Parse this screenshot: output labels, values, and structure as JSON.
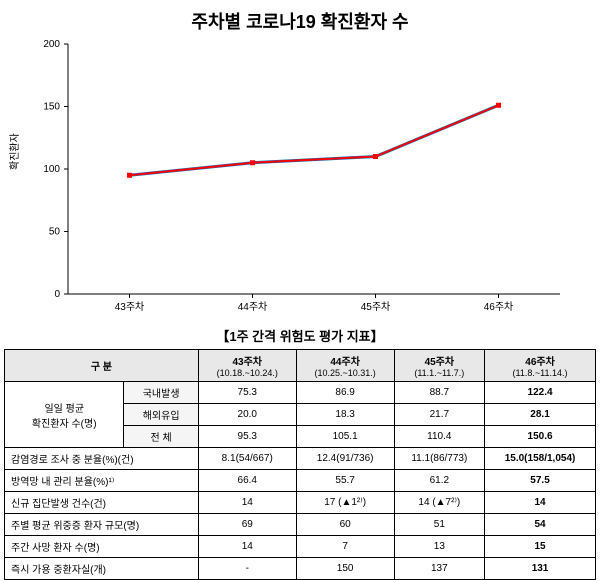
{
  "chart": {
    "title": "주차별 코로나19 확진환자 수",
    "y_label": "확진환자",
    "type": "line",
    "categories": [
      "43주차",
      "44주차",
      "45주차",
      "46주차"
    ],
    "values": [
      95,
      105,
      110,
      151
    ],
    "ylim": [
      0,
      200
    ],
    "ytick_step": 50,
    "line_color_outer": "#0070c0",
    "line_color_inner": "#ff0000",
    "marker_color": "#ff0000",
    "marker_size": 5,
    "line_width_outer": 3,
    "line_width_inner": 2,
    "background_color": "#ffffff",
    "axis_color": "#000000",
    "tick_fontsize": 10,
    "title_fontsize": 18
  },
  "table": {
    "title": "【1주 간격 위험도 평가 지표】",
    "header_main": "구 분",
    "columns": [
      {
        "main": "43주차",
        "sub": "(10.18.~10.24.)"
      },
      {
        "main": "44주차",
        "sub": "(10.25.~10.31.)"
      },
      {
        "main": "45주차",
        "sub": "(11.1.~11.7.)"
      },
      {
        "main": "46주차",
        "sub": "(11.8.~11.14.)"
      }
    ],
    "group_row": {
      "label": "일일 평균\n확진환자 수(명)",
      "subrows": [
        {
          "label": "국내발생",
          "cells": [
            "75.3",
            "86.9",
            "88.7",
            "122.4"
          ]
        },
        {
          "label": "해외유입",
          "cells": [
            "20.0",
            "18.3",
            "21.7",
            "28.1"
          ]
        },
        {
          "label": "전 체",
          "cells": [
            "95.3",
            "105.1",
            "110.4",
            "150.6"
          ]
        }
      ]
    },
    "rows": [
      {
        "label": "감염경로 조사 중 분율(%)(건)",
        "cells": [
          "8.1(54/667)",
          "12.4(91/736)",
          "11.1(86/773)",
          "15.0(158/1,054)"
        ]
      },
      {
        "label": "방역망 내 관리 분율(%)¹⁾",
        "cells": [
          "66.4",
          "55.7",
          "61.2",
          "57.5"
        ]
      },
      {
        "label": "신규 집단발생 건수(건)",
        "cells": [
          "14",
          "17 (▲1²⁾)",
          "14 (▲7²⁾)",
          "14"
        ]
      },
      {
        "label": "주별 평균 위중증 환자 규모(명)",
        "cells": [
          "69",
          "60",
          "51",
          "54"
        ]
      },
      {
        "label": "주간 사망 환자 수(명)",
        "cells": [
          "14",
          "7",
          "13",
          "15"
        ]
      },
      {
        "label": "즉시 가용 중환자실(개)",
        "cells": [
          "-",
          "150",
          "137",
          "131"
        ]
      }
    ]
  }
}
